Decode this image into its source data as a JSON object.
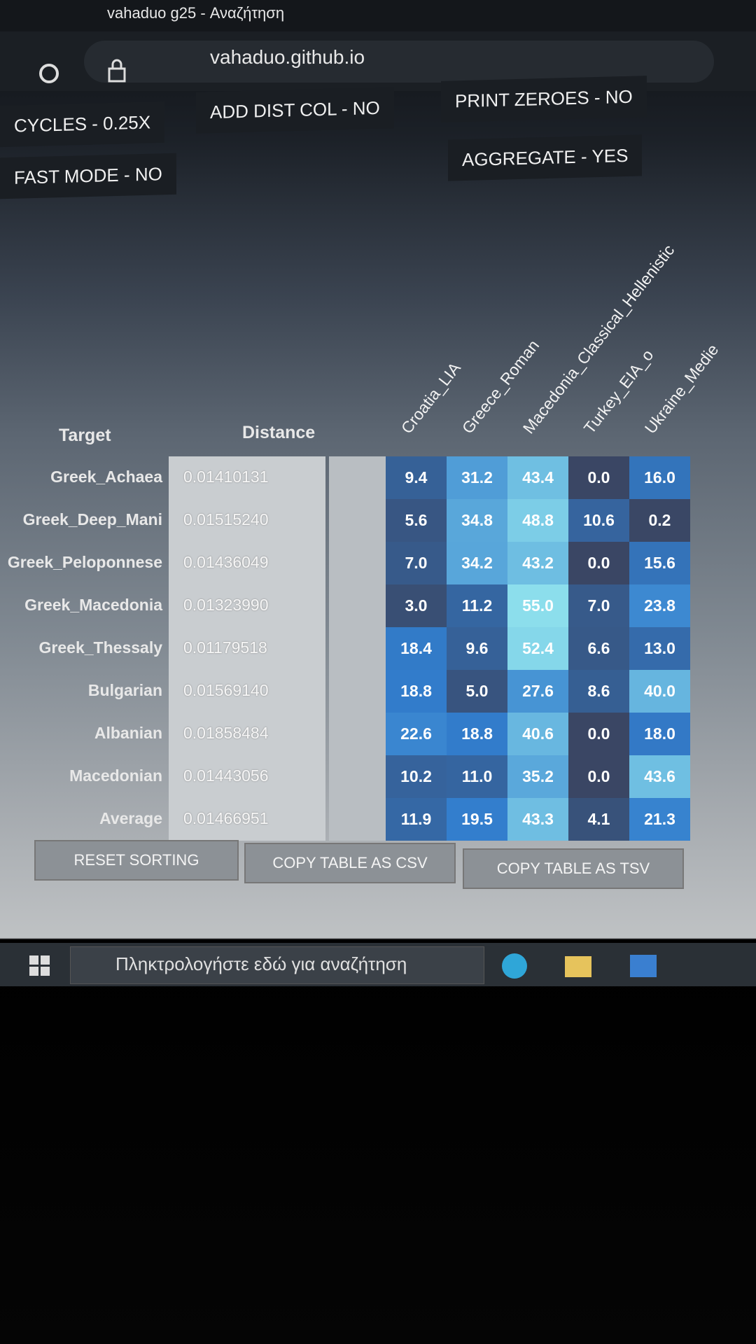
{
  "browser": {
    "tab_title": "vahaduo g25 - Αναζήτηση",
    "url": "vahaduo.github.io"
  },
  "options": [
    "CYCLES - 0.25X",
    "ADD DIST COL - NO",
    "PRINT ZEROES - NO",
    "FAST MODE - NO",
    "AGGREGATE - YES"
  ],
  "table": {
    "headers": [
      "Target",
      "Distance"
    ],
    "columns": [
      "Croatia_LIA",
      "Greece_Roman",
      "Macedonia_Classical_Hellenistic",
      "Turkey_EIA_o",
      "Ukraine_Medie"
    ],
    "rows": [
      {
        "target": "Greek_Achaea",
        "distance": "0.01410131",
        "values": [
          "9.4",
          "31.2",
          "43.4",
          "0.0",
          "16.0"
        ]
      },
      {
        "target": "Greek_Deep_Mani",
        "distance": "0.01515240",
        "values": [
          "5.6",
          "34.8",
          "48.8",
          "10.6",
          "0.2"
        ]
      },
      {
        "target": "Greek_Peloponnese",
        "distance": "0.01436049",
        "values": [
          "7.0",
          "34.2",
          "43.2",
          "0.0",
          "15.6"
        ]
      },
      {
        "target": "Greek_Macedonia",
        "distance": "0.01323990",
        "values": [
          "3.0",
          "11.2",
          "55.0",
          "7.0",
          "23.8"
        ]
      },
      {
        "target": "Greek_Thessaly",
        "distance": "0.01179518",
        "values": [
          "18.4",
          "9.6",
          "52.4",
          "6.6",
          "13.0"
        ]
      },
      {
        "target": "Bulgarian",
        "distance": "0.01569140",
        "values": [
          "18.8",
          "5.0",
          "27.6",
          "8.6",
          "40.0"
        ]
      },
      {
        "target": "Albanian",
        "distance": "0.01858484",
        "values": [
          "22.6",
          "18.8",
          "40.6",
          "0.0",
          "18.0"
        ]
      },
      {
        "target": "Macedonian",
        "distance": "0.01443056",
        "values": [
          "10.2",
          "11.0",
          "35.2",
          "0.0",
          "43.6"
        ]
      },
      {
        "target": "Average",
        "distance": "0.01466951",
        "values": [
          "11.9",
          "19.5",
          "43.3",
          "4.1",
          "21.3"
        ]
      }
    ]
  },
  "buttons": [
    "RESET SORTING",
    "COPY TABLE AS CSV",
    "COPY TABLE AS TSV"
  ],
  "taskbar": {
    "search_placeholder": "Πληκτρολογήστε εδώ για αναζήτηση"
  }
}
